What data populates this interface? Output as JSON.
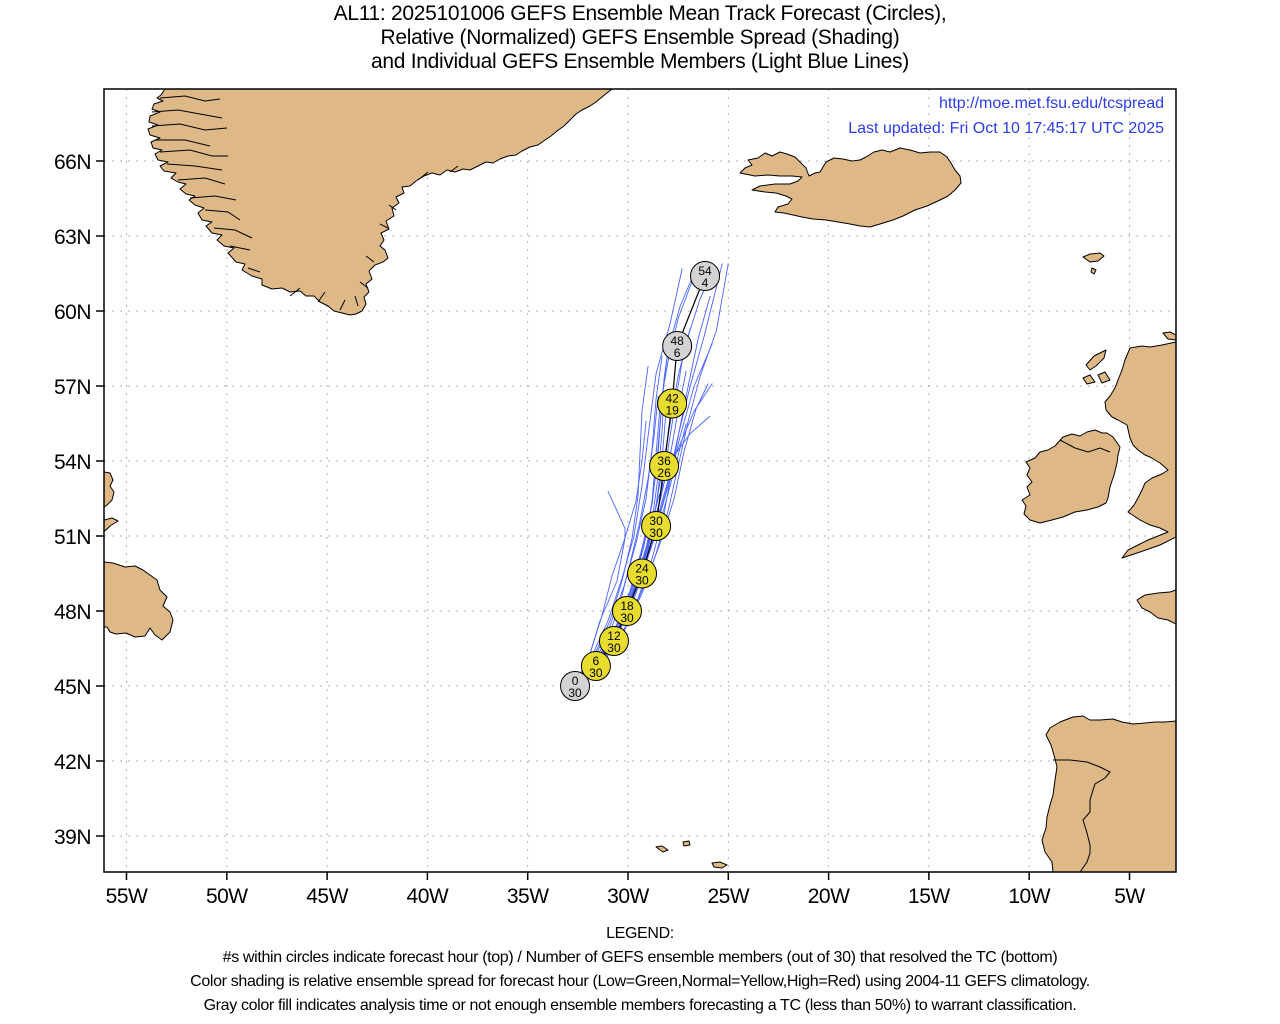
{
  "title": {
    "line1": "AL11: 2025101006 GEFS Ensemble Mean Track Forecast (Circles),",
    "line2": "Relative (Normalized) GEFS Ensemble Spread (Shading)",
    "line3": "and Individual GEFS Ensemble Members (Light Blue Lines)"
  },
  "credits": {
    "url": "http://moe.met.fsu.edu/tcspread",
    "updated": "Last updated: Fri Oct 10 17:45:17 UTC 2025"
  },
  "legend": {
    "heading": "LEGEND:",
    "lines": [
      "#s within circles indicate forecast hour (top) / Number of GEFS ensemble members (out of 30) that resolved the TC (bottom)",
      "Color shading is relative ensemble spread for forecast hour (Low=Green,Normal=Yellow,High=Red) using 2004-11 GEFS climatology.",
      "Gray color fill indicates analysis time or not enough ensemble members forecasting a TC (less than 50%) to warrant classification."
    ]
  },
  "colors": {
    "land": "#deb887",
    "ocean": "#ffffff",
    "member_line": "#4a64ff",
    "mean_line": "#000000",
    "gray_fill": "#d3d3d3",
    "normal_fill": "#e8dc2e",
    "credit_text": "#2c3de8"
  },
  "chart_data": {
    "type": "map",
    "lat_ticks": [
      {
        "value": 39,
        "label": "39N"
      },
      {
        "value": 42,
        "label": "42N"
      },
      {
        "value": 45,
        "label": "45N"
      },
      {
        "value": 48,
        "label": "48N"
      },
      {
        "value": 51,
        "label": "51N"
      },
      {
        "value": 54,
        "label": "54N"
      },
      {
        "value": 57,
        "label": "57N"
      },
      {
        "value": 60,
        "label": "60N"
      },
      {
        "value": 63,
        "label": "63N"
      },
      {
        "value": 66,
        "label": "66N"
      }
    ],
    "lon_ticks": [
      {
        "value": -55,
        "label": "55W"
      },
      {
        "value": -50,
        "label": "50W"
      },
      {
        "value": -45,
        "label": "45W"
      },
      {
        "value": -40,
        "label": "40W"
      },
      {
        "value": -35,
        "label": "35W"
      },
      {
        "value": -30,
        "label": "30W"
      },
      {
        "value": -25,
        "label": "25W"
      },
      {
        "value": -20,
        "label": "20W"
      },
      {
        "value": -15,
        "label": "15W"
      },
      {
        "value": -10,
        "label": "10W"
      },
      {
        "value": -5,
        "label": "5W"
      }
    ],
    "mean_track": [
      {
        "hour": "0",
        "members": "30",
        "lon": -32.64,
        "lat": 45.0,
        "fill": "gray"
      },
      {
        "hour": "6",
        "members": "30",
        "lon": -31.6,
        "lat": 45.8,
        "fill": "normal"
      },
      {
        "hour": "12",
        "members": "30",
        "lon": -30.7,
        "lat": 46.8,
        "fill": "normal"
      },
      {
        "hour": "18",
        "members": "30",
        "lon": -30.05,
        "lat": 48.0,
        "fill": "normal"
      },
      {
        "hour": "24",
        "members": "30",
        "lon": -29.3,
        "lat": 49.5,
        "fill": "normal"
      },
      {
        "hour": "30",
        "members": "30",
        "lon": -28.6,
        "lat": 51.4,
        "fill": "normal"
      },
      {
        "hour": "36",
        "members": "26",
        "lon": -28.2,
        "lat": 53.8,
        "fill": "normal"
      },
      {
        "hour": "42",
        "members": "19",
        "lon": -27.8,
        "lat": 56.3,
        "fill": "normal"
      },
      {
        "hour": "48",
        "members": "6",
        "lon": -27.55,
        "lat": 58.6,
        "fill": "gray"
      },
      {
        "hour": "54",
        "members": "4",
        "lon": -26.16,
        "lat": 61.4,
        "fill": "gray"
      }
    ],
    "member_tracks": [
      [
        [
          -32.6,
          45.1
        ],
        [
          -31.5,
          46.0
        ],
        [
          -30.5,
          47.2
        ],
        [
          -29.7,
          48.8
        ],
        [
          -29.0,
          50.5
        ],
        [
          -28.4,
          52.5
        ],
        [
          -28.0,
          54.5
        ],
        [
          -27.6,
          56.5
        ],
        [
          -27.2,
          58.5
        ],
        [
          -26.4,
          60.5
        ],
        [
          -25.7,
          61.7
        ]
      ],
      [
        [
          -32.6,
          45.1
        ],
        [
          -31.4,
          46.1
        ],
        [
          -30.4,
          47.4
        ],
        [
          -29.5,
          49.0
        ],
        [
          -28.8,
          50.8
        ],
        [
          -28.1,
          52.8
        ],
        [
          -27.5,
          55.0
        ],
        [
          -26.9,
          57.0
        ],
        [
          -26.2,
          59.0
        ],
        [
          -25.3,
          61.9
        ]
      ],
      [
        [
          -32.6,
          45.1
        ],
        [
          -31.6,
          46.0
        ],
        [
          -30.7,
          47.2
        ],
        [
          -29.9,
          48.8
        ],
        [
          -29.3,
          50.5
        ],
        [
          -28.8,
          52.3
        ],
        [
          -28.5,
          54.3
        ],
        [
          -28.3,
          56.5
        ],
        [
          -28.0,
          58.5
        ],
        [
          -27.4,
          60.2
        ],
        [
          -26.5,
          61.9
        ]
      ],
      [
        [
          -32.6,
          45.1
        ],
        [
          -31.8,
          46.2
        ],
        [
          -31.0,
          47.6
        ],
        [
          -30.3,
          49.3
        ],
        [
          -29.7,
          51.0
        ],
        [
          -29.3,
          53.0
        ],
        [
          -29.0,
          55.0
        ],
        [
          -28.6,
          57.5
        ],
        [
          -27.9,
          59.5
        ],
        [
          -27.3,
          61.7
        ]
      ],
      [
        [
          -32.6,
          45.1
        ],
        [
          -31.3,
          46.1
        ],
        [
          -30.3,
          47.5
        ],
        [
          -29.4,
          49.2
        ],
        [
          -28.7,
          51.0
        ],
        [
          -28.0,
          53.0
        ],
        [
          -27.4,
          55.0
        ],
        [
          -26.7,
          57.0
        ],
        [
          -25.8,
          58.7
        ]
      ],
      [
        [
          -32.6,
          45.1
        ],
        [
          -31.4,
          46.0
        ],
        [
          -30.4,
          47.3
        ],
        [
          -29.6,
          48.9
        ],
        [
          -28.9,
          50.6
        ],
        [
          -28.3,
          52.4
        ],
        [
          -27.6,
          54.3
        ],
        [
          -26.7,
          56.0
        ],
        [
          -25.8,
          57.1
        ]
      ],
      [
        [
          -32.6,
          45.1
        ],
        [
          -31.5,
          46.0
        ],
        [
          -30.5,
          47.3
        ],
        [
          -29.7,
          49.0
        ],
        [
          -29.0,
          50.8
        ],
        [
          -28.5,
          52.5
        ],
        [
          -27.7,
          54.2
        ],
        [
          -26.9,
          55.1
        ],
        [
          -25.9,
          55.8
        ]
      ],
      [
        [
          -32.6,
          45.1
        ],
        [
          -32.0,
          46.0
        ],
        [
          -31.4,
          47.6
        ],
        [
          -30.55,
          49.2
        ],
        [
          -30.15,
          50.9
        ],
        [
          -30.15,
          51.3
        ],
        [
          -31.0,
          52.8
        ]
      ],
      [
        [
          -32.6,
          45.1
        ],
        [
          -31.7,
          46.1
        ],
        [
          -30.9,
          47.4
        ],
        [
          -30.2,
          49.0
        ],
        [
          -29.6,
          50.7
        ],
        [
          -29.1,
          52.5
        ],
        [
          -28.8,
          54.5
        ],
        [
          -28.6,
          56.5
        ],
        [
          -28.3,
          58.2
        ]
      ],
      [
        [
          -32.6,
          45.1
        ],
        [
          -31.5,
          46.0
        ],
        [
          -30.6,
          47.1
        ],
        [
          -29.8,
          48.6
        ],
        [
          -29.1,
          50.3
        ],
        [
          -28.6,
          52.2
        ],
        [
          -28.3,
          54.1
        ],
        [
          -28.1,
          56.0
        ]
      ],
      [
        [
          -32.6,
          45.1
        ],
        [
          -31.6,
          45.9
        ],
        [
          -30.7,
          46.9
        ],
        [
          -29.9,
          48.3
        ],
        [
          -29.2,
          50.0
        ],
        [
          -28.7,
          51.8
        ],
        [
          -28.3,
          53.6
        ],
        [
          -27.9,
          55.5
        ],
        [
          -27.5,
          57.4
        ],
        [
          -26.9,
          59.3
        ]
      ],
      [
        [
          -32.6,
          45.1
        ],
        [
          -31.3,
          46.0
        ],
        [
          -30.2,
          47.2
        ],
        [
          -29.3,
          48.7
        ],
        [
          -28.6,
          50.3
        ],
        [
          -28.0,
          52.0
        ],
        [
          -27.5,
          53.8
        ],
        [
          -27.0,
          55.6
        ],
        [
          -26.4,
          57.4
        ],
        [
          -25.6,
          59.2
        ],
        [
          -25.0,
          61.9
        ]
      ],
      [
        [
          -32.6,
          45.1
        ],
        [
          -31.9,
          46.3
        ],
        [
          -31.3,
          47.8
        ],
        [
          -30.8,
          49.4
        ],
        [
          -30.2,
          50.8
        ],
        [
          -29.6,
          52.4
        ],
        [
          -29.3,
          54.0
        ],
        [
          -29.1,
          55.6
        ]
      ],
      [
        [
          -32.6,
          45.1
        ],
        [
          -31.5,
          46.0
        ],
        [
          -30.6,
          47.3
        ],
        [
          -29.8,
          48.9
        ],
        [
          -29.2,
          50.6
        ],
        [
          -28.8,
          52.4
        ],
        [
          -28.6,
          54.3
        ],
        [
          -28.4,
          56.2
        ],
        [
          -28.0,
          58.0
        ],
        [
          -27.5,
          59.7
        ],
        [
          -26.8,
          61.2
        ]
      ],
      [
        [
          -32.6,
          45.1
        ],
        [
          -31.4,
          46.1
        ],
        [
          -30.5,
          47.3
        ],
        [
          -29.7,
          48.9
        ],
        [
          -29.0,
          50.6
        ],
        [
          -28.4,
          52.4
        ],
        [
          -27.9,
          54.2
        ],
        [
          -27.5,
          56.0
        ],
        [
          -27.1,
          57.6
        ]
      ],
      [
        [
          -32.6,
          45.1
        ],
        [
          -31.6,
          46.0
        ],
        [
          -30.7,
          47.0
        ],
        [
          -30.0,
          48.5
        ],
        [
          -29.4,
          50.1
        ],
        [
          -28.9,
          51.8
        ],
        [
          -28.6,
          53.6
        ],
        [
          -28.4,
          55.5
        ],
        [
          -28.2,
          57.3
        ],
        [
          -27.9,
          59.0
        ]
      ],
      [
        [
          -32.6,
          45.1
        ],
        [
          -31.2,
          46.1
        ],
        [
          -30.1,
          47.4
        ],
        [
          -29.2,
          49.0
        ],
        [
          -28.4,
          50.7
        ],
        [
          -27.7,
          52.5
        ],
        [
          -27.2,
          54.4
        ],
        [
          -26.6,
          56.1
        ],
        [
          -26.0,
          57.1
        ]
      ],
      [
        [
          -32.6,
          45.1
        ],
        [
          -31.5,
          45.9
        ],
        [
          -30.6,
          46.8
        ],
        [
          -29.9,
          48.2
        ],
        [
          -29.3,
          49.8
        ],
        [
          -28.8,
          51.6
        ],
        [
          -28.5,
          53.4
        ],
        [
          -28.3,
          55.2
        ],
        [
          -28.2,
          56.8
        ]
      ],
      [
        [
          -32.6,
          45.1
        ],
        [
          -31.7,
          46.2
        ],
        [
          -30.9,
          47.6
        ],
        [
          -30.3,
          49.2
        ],
        [
          -29.8,
          50.9
        ],
        [
          -29.5,
          52.6
        ],
        [
          -29.4,
          54.3
        ],
        [
          -29.3,
          56.0
        ],
        [
          -29.0,
          57.8
        ]
      ],
      [
        [
          -32.6,
          45.1
        ],
        [
          -31.5,
          46.0
        ],
        [
          -30.5,
          47.2
        ],
        [
          -29.6,
          48.7
        ],
        [
          -28.9,
          50.4
        ],
        [
          -28.2,
          52.1
        ],
        [
          -27.6,
          53.9
        ],
        [
          -27.1,
          55.5
        ]
      ],
      [
        [
          -32.6,
          45.1
        ],
        [
          -31.8,
          45.9
        ],
        [
          -31.0,
          46.9
        ],
        [
          -30.4,
          48.3
        ],
        [
          -29.9,
          49.9
        ],
        [
          -29.4,
          51.6
        ],
        [
          -29.0,
          53.3
        ],
        [
          -28.7,
          55.0
        ],
        [
          -28.5,
          56.6
        ]
      ],
      [
        [
          -32.6,
          45.1
        ],
        [
          -31.3,
          45.9
        ],
        [
          -30.3,
          47.0
        ],
        [
          -29.5,
          48.5
        ],
        [
          -28.8,
          50.1
        ],
        [
          -28.2,
          51.9
        ],
        [
          -27.8,
          53.7
        ],
        [
          -27.4,
          55.4
        ],
        [
          -27.0,
          57.0
        ],
        [
          -26.5,
          58.9
        ],
        [
          -25.9,
          60.6
        ]
      ]
    ]
  }
}
